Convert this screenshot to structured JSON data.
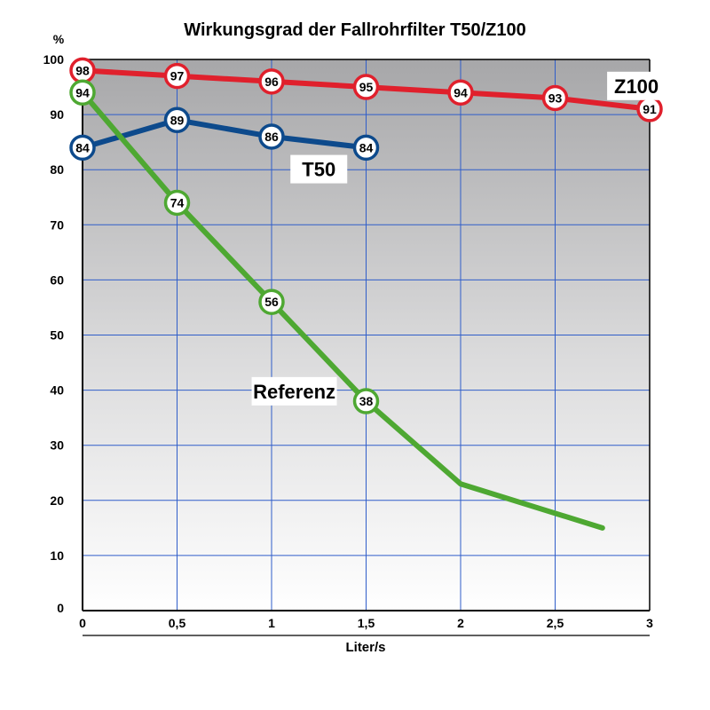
{
  "chart_data": {
    "type": "line",
    "title": "Wirkungsgrad der Fallrohrfilter T50/Z100",
    "xlabel": "Liter/s",
    "ylabel": "%",
    "xlim": [
      0,
      3
    ],
    "ylim": [
      0,
      100
    ],
    "x_ticks": [
      0,
      0.5,
      1,
      1.5,
      2,
      2.5,
      3
    ],
    "x_tick_labels": [
      "0",
      "0,5",
      "1",
      "1,5",
      "2",
      "2,5",
      "3"
    ],
    "y_ticks": [
      0,
      10,
      20,
      30,
      40,
      50,
      60,
      70,
      80,
      90,
      100
    ],
    "y_tick_labels": [
      "0",
      "10",
      "20",
      "30",
      "40",
      "50",
      "60",
      "70",
      "80",
      "90",
      "100"
    ],
    "grid": true,
    "series": [
      {
        "name": "Z100",
        "color": "#e0202c",
        "x": [
          0,
          0.5,
          1,
          1.5,
          2,
          2.5,
          3
        ],
        "y": [
          98,
          97,
          96,
          95,
          94,
          93,
          91
        ],
        "labels": [
          "98",
          "97",
          "96",
          "95",
          "94",
          "93",
          "91"
        ]
      },
      {
        "name": "T50",
        "color": "#0d4a8c",
        "x": [
          0,
          0.5,
          1,
          1.5
        ],
        "y": [
          84,
          89,
          86,
          84
        ],
        "labels": [
          "84",
          "89",
          "86",
          "84"
        ]
      },
      {
        "name": "Referenz",
        "color": "#4ea832",
        "x": [
          0,
          0.5,
          1,
          1.5,
          2,
          2.75
        ],
        "y": [
          94,
          74,
          56,
          38,
          23,
          15
        ],
        "labels": [
          "94",
          "74",
          "56",
          "38",
          null,
          null
        ]
      }
    ]
  }
}
